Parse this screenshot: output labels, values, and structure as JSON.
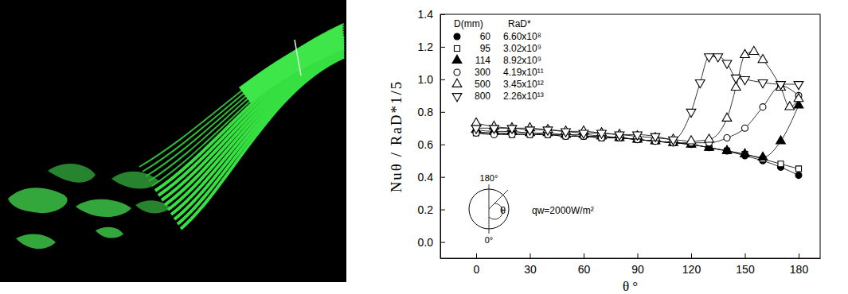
{
  "chart_data": {
    "type": "line",
    "x_label": "θ °",
    "y_label": "Nuθ / RaD*1/5",
    "xlim": [
      -20,
      192
    ],
    "ylim": [
      -0.1,
      1.4
    ],
    "xticks": [
      0,
      30,
      60,
      90,
      120,
      150,
      180
    ],
    "yticks": [
      {
        "value": 0,
        "label": "0.0"
      },
      {
        "value": 0.2,
        "label": "0.2"
      },
      {
        "value": 0.4,
        "label": "0.4"
      },
      {
        "value": 0.6,
        "label": "0.6"
      },
      {
        "value": 0.8,
        "label": "0.8"
      },
      {
        "value": 1.0,
        "label": "1.0"
      },
      {
        "value": 1.2,
        "label": "1.2"
      },
      {
        "value": 1.4,
        "label": "1.4"
      }
    ],
    "grid": false,
    "legend": "upper left",
    "legend_headers": [
      "D(mm)",
      "RaD*"
    ],
    "annotations": [
      {
        "text": "180°"
      },
      {
        "text": "0°"
      },
      {
        "text": "θ"
      },
      {
        "text": "qw=2000W/m²"
      }
    ],
    "series": [
      {
        "name": "60",
        "ra_d": "6.60x10⁸",
        "color": "#000000",
        "marker": "circle-filled",
        "line_style": "solid",
        "x": [
          0,
          10,
          20,
          30,
          40,
          50,
          60,
          70,
          80,
          90,
          100,
          110,
          120,
          130,
          140,
          150,
          160,
          170,
          180
        ],
        "values": [
          0.68,
          0.67,
          0.67,
          0.67,
          0.66,
          0.66,
          0.65,
          0.65,
          0.64,
          0.63,
          0.62,
          0.61,
          0.6,
          0.58,
          0.56,
          0.53,
          0.5,
          0.46,
          0.41
        ]
      },
      {
        "name": "95",
        "ra_d": "3.02x10⁹",
        "color": "#000000",
        "marker": "square-open",
        "line_style": "solid",
        "x": [
          0,
          10,
          20,
          30,
          40,
          50,
          60,
          70,
          80,
          90,
          100,
          110,
          120,
          130,
          140,
          150,
          160,
          170,
          180
        ],
        "values": [
          0.67,
          0.67,
          0.66,
          0.66,
          0.66,
          0.65,
          0.65,
          0.64,
          0.64,
          0.63,
          0.62,
          0.61,
          0.6,
          0.58,
          0.56,
          0.54,
          0.51,
          0.48,
          0.45
        ]
      },
      {
        "name": "114",
        "ra_d": "8.92x10⁹",
        "color": "#000000",
        "marker": "triangle-up-filled",
        "line_style": "solid",
        "x": [
          0,
          10,
          20,
          30,
          40,
          50,
          60,
          70,
          80,
          90,
          100,
          110,
          120,
          130,
          140,
          150,
          160,
          170,
          180
        ],
        "values": [
          0.69,
          0.68,
          0.68,
          0.67,
          0.67,
          0.66,
          0.66,
          0.65,
          0.64,
          0.63,
          0.62,
          0.61,
          0.6,
          0.58,
          0.56,
          0.54,
          0.52,
          0.62,
          0.84
        ]
      },
      {
        "name": "300",
        "ra_d": "4.19x10¹¹",
        "color": "#000000",
        "marker": "circle-open",
        "line_style": "solid",
        "x": [
          0,
          10,
          20,
          30,
          40,
          50,
          60,
          70,
          80,
          90,
          100,
          110,
          120,
          130,
          140,
          150,
          160,
          170,
          180
        ],
        "values": [
          0.67,
          0.66,
          0.66,
          0.66,
          0.66,
          0.65,
          0.65,
          0.64,
          0.64,
          0.63,
          0.62,
          0.61,
          0.61,
          0.61,
          0.64,
          0.7,
          0.83,
          0.96,
          0.9
        ]
      },
      {
        "name": "500",
        "ra_d": "3.45x10¹²",
        "color": "#000000",
        "marker": "triangle-up-open",
        "line_style": "solid",
        "x": [
          0,
          10,
          20,
          30,
          40,
          50,
          60,
          70,
          80,
          90,
          100,
          110,
          120,
          130,
          140,
          145,
          150,
          155,
          160,
          170,
          175,
          180
        ],
        "values": [
          0.73,
          0.71,
          0.7,
          0.7,
          0.69,
          0.68,
          0.68,
          0.67,
          0.66,
          0.65,
          0.64,
          0.63,
          0.62,
          0.63,
          0.76,
          0.95,
          1.15,
          1.17,
          1.12,
          0.95,
          0.83,
          0.88
        ]
      },
      {
        "name": "800",
        "ra_d": "2.26x10¹³",
        "color": "#000000",
        "marker": "triangle-down-open",
        "line_style": "solid",
        "x": [
          0,
          10,
          20,
          30,
          40,
          50,
          60,
          70,
          80,
          90,
          100,
          110,
          120,
          125,
          130,
          135,
          140,
          145,
          150,
          160,
          170,
          180
        ],
        "values": [
          0.7,
          0.7,
          0.7,
          0.69,
          0.69,
          0.68,
          0.67,
          0.67,
          0.66,
          0.66,
          0.65,
          0.63,
          0.8,
          0.98,
          1.14,
          1.14,
          1.1,
          1.01,
          1.0,
          0.98,
          0.97,
          0.97
        ]
      }
    ]
  }
}
